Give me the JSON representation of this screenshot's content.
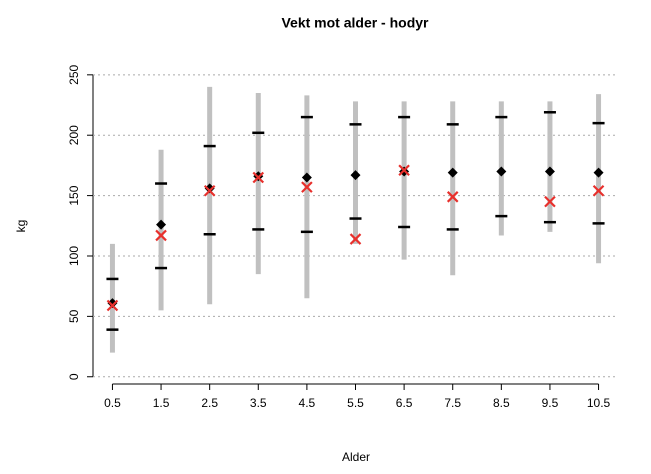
{
  "chart_data": {
    "type": "scatter",
    "title": "Vekt mot alder - hodyr",
    "x_label": "Alder",
    "y_label": "kg",
    "x": [
      0.5,
      1.5,
      2.5,
      3.5,
      4.5,
      5.5,
      6.5,
      7.5,
      8.5,
      9.5,
      10.5
    ],
    "xlim": [
      0.1,
      10.9
    ],
    "xticks": [
      0.5,
      1.5,
      2.5,
      3.5,
      4.5,
      5.5,
      6.5,
      7.5,
      8.5,
      9.5,
      10.5
    ],
    "ylim": [
      -6,
      254
    ],
    "yticks": [
      0,
      50,
      100,
      150,
      200,
      250
    ],
    "grid": true,
    "spread": {
      "color": "#c0c0c0",
      "low": [
        20,
        55,
        60,
        85,
        65,
        110,
        97,
        84,
        117,
        120,
        94
      ],
      "high": [
        110,
        188,
        240,
        235,
        233,
        228,
        228,
        228,
        228,
        228,
        234
      ]
    },
    "sd": {
      "color": "#000000",
      "low": [
        39,
        90,
        118,
        122,
        120,
        131,
        124,
        122,
        133,
        128,
        127
      ],
      "high": [
        81,
        160,
        191,
        202,
        215,
        209,
        215,
        209,
        215,
        219,
        210
      ]
    },
    "mean": {
      "color": "#000000",
      "values": [
        61,
        126,
        156,
        166,
        165,
        167,
        170,
        169,
        170,
        170,
        169
      ]
    },
    "marker": {
      "color": "#e8302c",
      "values": [
        59,
        117,
        154,
        165,
        157,
        114,
        171,
        149,
        null,
        145,
        154
      ]
    }
  }
}
